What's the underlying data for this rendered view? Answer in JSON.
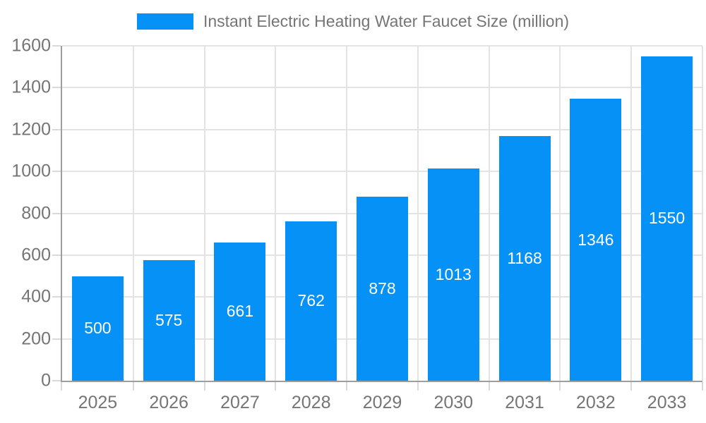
{
  "legend": {
    "label": "Instant Electric Heating Water Faucet Size (million)"
  },
  "chart_data": {
    "type": "bar",
    "title": "Instant Electric Heating Water Faucet Size (million)",
    "categories": [
      "2025",
      "2026",
      "2027",
      "2028",
      "2029",
      "2030",
      "2031",
      "2032",
      "2033"
    ],
    "series": [
      {
        "name": "Instant Electric Heating Water Faucet Size (million)",
        "values": [
          500,
          575,
          661,
          762,
          878,
          1013,
          1168,
          1346,
          1550
        ]
      }
    ],
    "value_labels": [
      500,
      575,
      661,
      762,
      878,
      1013,
      1168,
      1346,
      1550
    ],
    "value_label_position": "inside-center",
    "xlabel": "",
    "ylabel": "",
    "ylim": [
      0,
      1600
    ],
    "y_ticks": [
      0,
      200,
      400,
      600,
      800,
      1000,
      1200,
      1400,
      1600
    ],
    "grid": true,
    "legend_position": "top-center",
    "colors": {
      "bar": "#0591f5",
      "value_label_text": "#ffffff",
      "axis_line": "#9e9e9e",
      "grid_line": "#e3e3e3",
      "tick_mark": "#d9d9d9",
      "axis_text": "#757575",
      "legend_text": "#757575",
      "background": "#ffffff"
    }
  }
}
